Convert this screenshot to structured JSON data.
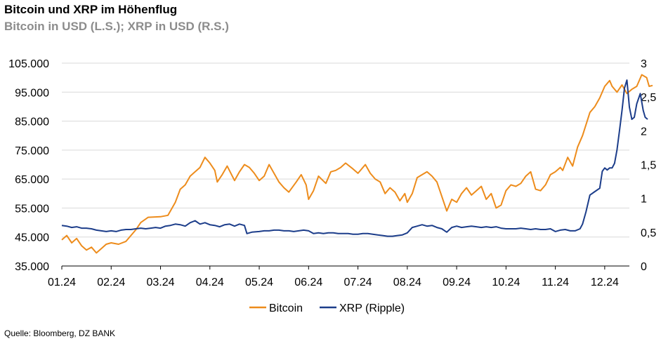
{
  "chart_data": {
    "type": "line",
    "title": "Bitcoin und XRP im Höhenflug",
    "subtitle": "Bitcoin in USD (L.S.); XRP in USD (R.S.)",
    "source": "Quelle: Bloomberg, DZ BANK",
    "x_ticks": [
      "01.24",
      "02.24",
      "03.24",
      "04.24",
      "05.24",
      "06.24",
      "07.24",
      "08.24",
      "09.24",
      "10.24",
      "11.24",
      "12.24"
    ],
    "y_left": {
      "ticks": [
        "35.000",
        "45.000",
        "55.000",
        "65.000",
        "75.000",
        "85.000",
        "95.000",
        "105.000"
      ],
      "ylim": [
        35000,
        105000
      ]
    },
    "y_right": {
      "ticks": [
        "0",
        "0,5",
        "1",
        "1,5",
        "2",
        "2,5",
        "3"
      ],
      "ylim": [
        0,
        3
      ]
    },
    "grid": true,
    "legend_position": "bottom",
    "series": [
      {
        "name": "Bitcoin",
        "axis": "left",
        "color": "#ED8C1C",
        "points": [
          [
            0.0,
            44000
          ],
          [
            0.1,
            45500
          ],
          [
            0.2,
            43000
          ],
          [
            0.3,
            44500
          ],
          [
            0.4,
            42000
          ],
          [
            0.5,
            40500
          ],
          [
            0.6,
            41500
          ],
          [
            0.7,
            39500
          ],
          [
            0.8,
            41000
          ],
          [
            0.9,
            42500
          ],
          [
            1.0,
            43000
          ],
          [
            1.15,
            42500
          ],
          [
            1.3,
            43500
          ],
          [
            1.5,
            47500
          ],
          [
            1.6,
            50000
          ],
          [
            1.75,
            51800
          ],
          [
            2.0,
            52000
          ],
          [
            2.15,
            52500
          ],
          [
            2.3,
            57000
          ],
          [
            2.4,
            61500
          ],
          [
            2.5,
            63000
          ],
          [
            2.6,
            66000
          ],
          [
            2.7,
            67500
          ],
          [
            2.8,
            69000
          ],
          [
            2.9,
            72500
          ],
          [
            3.0,
            70500
          ],
          [
            3.1,
            68000
          ],
          [
            3.15,
            64000
          ],
          [
            3.25,
            66500
          ],
          [
            3.35,
            69500
          ],
          [
            3.5,
            64500
          ],
          [
            3.6,
            67500
          ],
          [
            3.7,
            70000
          ],
          [
            3.8,
            69000
          ],
          [
            3.9,
            67000
          ],
          [
            4.0,
            64500
          ],
          [
            4.1,
            66000
          ],
          [
            4.2,
            70000
          ],
          [
            4.3,
            67000
          ],
          [
            4.4,
            64000
          ],
          [
            4.5,
            62000
          ],
          [
            4.6,
            60500
          ],
          [
            4.75,
            64000
          ],
          [
            4.85,
            66500
          ],
          [
            4.95,
            63000
          ],
          [
            5.0,
            58000
          ],
          [
            5.1,
            61000
          ],
          [
            5.2,
            66000
          ],
          [
            5.35,
            63500
          ],
          [
            5.45,
            67500
          ],
          [
            5.55,
            68000
          ],
          [
            5.65,
            69000
          ],
          [
            5.75,
            70500
          ],
          [
            5.9,
            68500
          ],
          [
            6.0,
            67000
          ],
          [
            6.15,
            70000
          ],
          [
            6.25,
            67000
          ],
          [
            6.35,
            65000
          ],
          [
            6.45,
            64000
          ],
          [
            6.55,
            60000
          ],
          [
            6.65,
            62000
          ],
          [
            6.75,
            60500
          ],
          [
            6.85,
            57500
          ],
          [
            6.95,
            60000
          ],
          [
            7.0,
            57000
          ],
          [
            7.1,
            60000
          ],
          [
            7.2,
            65500
          ],
          [
            7.3,
            66500
          ],
          [
            7.4,
            67500
          ],
          [
            7.5,
            66000
          ],
          [
            7.6,
            64000
          ],
          [
            7.7,
            59000
          ],
          [
            7.8,
            54000
          ],
          [
            7.9,
            58000
          ],
          [
            8.0,
            57000
          ],
          [
            8.1,
            60000
          ],
          [
            8.2,
            62000
          ],
          [
            8.3,
            59500
          ],
          [
            8.4,
            61000
          ],
          [
            8.5,
            62500
          ],
          [
            8.6,
            58000
          ],
          [
            8.7,
            60000
          ],
          [
            8.8,
            55000
          ],
          [
            8.9,
            56000
          ],
          [
            9.0,
            61000
          ],
          [
            9.1,
            63000
          ],
          [
            9.2,
            62500
          ],
          [
            9.3,
            63500
          ],
          [
            9.4,
            66000
          ],
          [
            9.5,
            67500
          ],
          [
            9.6,
            61500
          ],
          [
            9.7,
            61000
          ],
          [
            9.8,
            63000
          ],
          [
            9.9,
            66500
          ],
          [
            10.0,
            67500
          ],
          [
            10.1,
            69000
          ],
          [
            10.15,
            68000
          ],
          [
            10.25,
            72500
          ],
          [
            10.35,
            69500
          ],
          [
            10.45,
            76000
          ],
          [
            10.55,
            80000
          ],
          [
            10.7,
            88000
          ],
          [
            10.8,
            90000
          ],
          [
            10.9,
            93000
          ],
          [
            11.0,
            97000
          ],
          [
            11.1,
            99000
          ],
          [
            11.15,
            97000
          ],
          [
            11.25,
            95000
          ],
          [
            11.35,
            97500
          ],
          [
            11.45,
            94500
          ],
          [
            11.55,
            96000
          ],
          [
            11.65,
            97000
          ],
          [
            11.75,
            101000
          ],
          [
            11.85,
            100000
          ],
          [
            11.9,
            97000
          ],
          [
            11.97,
            97300
          ]
        ]
      },
      {
        "name": "XRP (Ripple)",
        "axis": "right",
        "color": "#1C3D8A",
        "points": [
          [
            0.0,
            0.6
          ],
          [
            0.1,
            0.59
          ],
          [
            0.2,
            0.57
          ],
          [
            0.3,
            0.58
          ],
          [
            0.4,
            0.56
          ],
          [
            0.5,
            0.56
          ],
          [
            0.6,
            0.55
          ],
          [
            0.7,
            0.53
          ],
          [
            0.8,
            0.52
          ],
          [
            0.9,
            0.51
          ],
          [
            1.0,
            0.52
          ],
          [
            1.1,
            0.51
          ],
          [
            1.2,
            0.53
          ],
          [
            1.3,
            0.54
          ],
          [
            1.4,
            0.54
          ],
          [
            1.5,
            0.55
          ],
          [
            1.6,
            0.56
          ],
          [
            1.7,
            0.55
          ],
          [
            1.8,
            0.56
          ],
          [
            1.9,
            0.57
          ],
          [
            2.0,
            0.56
          ],
          [
            2.1,
            0.59
          ],
          [
            2.2,
            0.6
          ],
          [
            2.3,
            0.62
          ],
          [
            2.4,
            0.61
          ],
          [
            2.5,
            0.59
          ],
          [
            2.6,
            0.64
          ],
          [
            2.7,
            0.67
          ],
          [
            2.8,
            0.62
          ],
          [
            2.9,
            0.64
          ],
          [
            3.0,
            0.61
          ],
          [
            3.1,
            0.6
          ],
          [
            3.2,
            0.58
          ],
          [
            3.3,
            0.61
          ],
          [
            3.4,
            0.62
          ],
          [
            3.5,
            0.59
          ],
          [
            3.6,
            0.62
          ],
          [
            3.7,
            0.6
          ],
          [
            3.75,
            0.48
          ],
          [
            3.85,
            0.5
          ],
          [
            4.0,
            0.51
          ],
          [
            4.1,
            0.52
          ],
          [
            4.2,
            0.52
          ],
          [
            4.3,
            0.53
          ],
          [
            4.4,
            0.53
          ],
          [
            4.5,
            0.52
          ],
          [
            4.6,
            0.52
          ],
          [
            4.7,
            0.51
          ],
          [
            4.8,
            0.52
          ],
          [
            4.9,
            0.53
          ],
          [
            5.0,
            0.52
          ],
          [
            5.1,
            0.48
          ],
          [
            5.2,
            0.49
          ],
          [
            5.3,
            0.48
          ],
          [
            5.4,
            0.49
          ],
          [
            5.5,
            0.49
          ],
          [
            5.6,
            0.48
          ],
          [
            5.7,
            0.48
          ],
          [
            5.8,
            0.48
          ],
          [
            5.9,
            0.47
          ],
          [
            6.0,
            0.47
          ],
          [
            6.1,
            0.48
          ],
          [
            6.2,
            0.48
          ],
          [
            6.3,
            0.47
          ],
          [
            6.4,
            0.46
          ],
          [
            6.5,
            0.45
          ],
          [
            6.6,
            0.44
          ],
          [
            6.7,
            0.44
          ],
          [
            6.8,
            0.45
          ],
          [
            6.9,
            0.46
          ],
          [
            7.0,
            0.49
          ],
          [
            7.1,
            0.57
          ],
          [
            7.2,
            0.59
          ],
          [
            7.3,
            0.61
          ],
          [
            7.4,
            0.59
          ],
          [
            7.5,
            0.6
          ],
          [
            7.6,
            0.57
          ],
          [
            7.7,
            0.55
          ],
          [
            7.8,
            0.5
          ],
          [
            7.9,
            0.57
          ],
          [
            8.0,
            0.59
          ],
          [
            8.1,
            0.57
          ],
          [
            8.2,
            0.58
          ],
          [
            8.3,
            0.59
          ],
          [
            8.4,
            0.58
          ],
          [
            8.5,
            0.57
          ],
          [
            8.6,
            0.58
          ],
          [
            8.7,
            0.57
          ],
          [
            8.8,
            0.58
          ],
          [
            8.9,
            0.56
          ],
          [
            9.0,
            0.55
          ],
          [
            9.1,
            0.55
          ],
          [
            9.2,
            0.55
          ],
          [
            9.3,
            0.56
          ],
          [
            9.4,
            0.55
          ],
          [
            9.5,
            0.54
          ],
          [
            9.6,
            0.55
          ],
          [
            9.7,
            0.54
          ],
          [
            9.8,
            0.54
          ],
          [
            9.9,
            0.55
          ],
          [
            10.0,
            0.51
          ],
          [
            10.1,
            0.53
          ],
          [
            10.2,
            0.54
          ],
          [
            10.3,
            0.52
          ],
          [
            10.4,
            0.52
          ],
          [
            10.5,
            0.55
          ],
          [
            10.55,
            0.62
          ],
          [
            10.62,
            0.8
          ],
          [
            10.7,
            1.05
          ],
          [
            10.8,
            1.1
          ],
          [
            10.9,
            1.15
          ],
          [
            10.95,
            1.4
          ],
          [
            11.0,
            1.45
          ],
          [
            11.05,
            1.42
          ],
          [
            11.1,
            1.45
          ],
          [
            11.15,
            1.45
          ],
          [
            11.2,
            1.52
          ],
          [
            11.25,
            1.72
          ],
          [
            11.3,
            2.0
          ],
          [
            11.35,
            2.3
          ],
          [
            11.4,
            2.63
          ],
          [
            11.45,
            2.75
          ],
          [
            11.5,
            2.35
          ],
          [
            11.55,
            2.17
          ],
          [
            11.6,
            2.2
          ],
          [
            11.65,
            2.4
          ],
          [
            11.72,
            2.55
          ],
          [
            11.78,
            2.3
          ],
          [
            11.82,
            2.2
          ],
          [
            11.87,
            2.17
          ]
        ]
      }
    ]
  }
}
